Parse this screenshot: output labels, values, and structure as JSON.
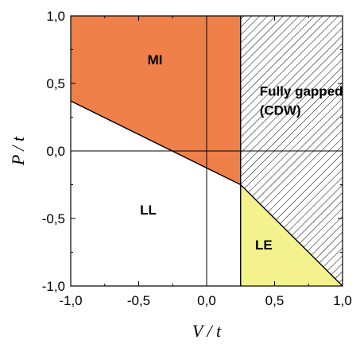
{
  "chart_data": {
    "type": "area",
    "title": "",
    "xlabel": "V / t",
    "ylabel": "P / t",
    "xlim": [
      -1.0,
      1.0
    ],
    "ylim": [
      -1.0,
      1.0
    ],
    "xticks": [
      -1.0,
      -0.5,
      0.0,
      0.5,
      1.0
    ],
    "yticks": [
      -1.0,
      -0.5,
      0.0,
      0.5,
      1.0
    ],
    "xtick_labels": [
      "-1,0",
      "-0,5",
      "0,0",
      "0,5",
      "1,0"
    ],
    "ytick_labels": [
      "-1,0",
      "-0,5",
      "0,0",
      "0,5",
      "1,0"
    ],
    "reference_lines": {
      "x": 0.0,
      "y": 0.0
    },
    "regions": [
      {
        "id": "mi",
        "label": "MI",
        "fill": "#f0804a",
        "pattern": "none",
        "polygon": [
          [
            -1.0,
            0.37
          ],
          [
            0.25,
            -0.25
          ],
          [
            0.25,
            1.0
          ],
          [
            -1.0,
            1.0
          ]
        ],
        "label_pos": [
          -0.38,
          0.64
        ]
      },
      {
        "id": "ll",
        "label": "LL",
        "fill": "#ffffff",
        "pattern": "none",
        "polygon": [
          [
            -1.0,
            -1.0
          ],
          [
            0.25,
            -1.0
          ],
          [
            0.25,
            -0.25
          ],
          [
            -1.0,
            0.37
          ]
        ],
        "label_pos": [
          -0.43,
          -0.47
        ]
      },
      {
        "id": "le",
        "label": "LE",
        "fill": "#f4f28c",
        "pattern": "none",
        "polygon": [
          [
            0.25,
            -1.0
          ],
          [
            1.0,
            -1.0
          ],
          [
            0.25,
            -0.25
          ]
        ],
        "label_pos": [
          0.42,
          -0.73
        ]
      },
      {
        "id": "cdw",
        "label_lines": [
          "Fully gapped",
          "(CDW)"
        ],
        "fill": "#ffffff",
        "pattern": "hatch",
        "polygon": [
          [
            0.25,
            1.0
          ],
          [
            1.0,
            1.0
          ],
          [
            1.0,
            -1.0
          ],
          [
            0.25,
            -0.25
          ]
        ],
        "label_pos": [
          0.39,
          0.41
        ]
      }
    ],
    "boundaries": [
      {
        "x": [
          -1.0,
          0.25
        ],
        "y": [
          0.37,
          -0.25
        ]
      },
      {
        "x": [
          0.25,
          0.25
        ],
        "y": [
          1.0,
          -1.0
        ]
      },
      {
        "x": [
          0.25,
          1.0
        ],
        "y": [
          -0.25,
          -1.0
        ]
      }
    ],
    "grid": false,
    "legend": "none"
  }
}
